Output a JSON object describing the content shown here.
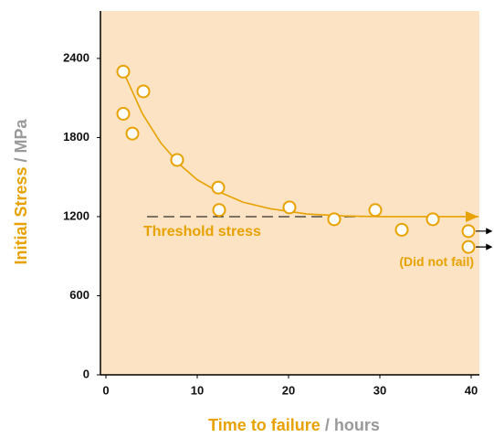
{
  "chart_data": {
    "type": "scatter",
    "x_label": "Time to failure",
    "x_label_unit": "/ hours",
    "y_label": "Initial Stress",
    "y_label_unit": "/ MPa",
    "xlim": [
      -0.6,
      40.9
    ],
    "ylim": [
      0,
      2760
    ],
    "xticks": [
      0,
      10,
      20,
      30,
      40
    ],
    "yticks": [
      0,
      600,
      1200,
      1800,
      2400
    ],
    "color": "#e8a200",
    "background": "#fbe3c3",
    "series": [
      {
        "x": [
          1.9,
          1.9,
          2.9,
          4.1,
          7.8,
          12.3,
          12.4,
          20.1,
          25,
          29.5,
          32.4,
          35.8
        ],
        "values": [
          2300,
          1980,
          1830,
          2150,
          1630,
          1420,
          1250,
          1270,
          1180,
          1250,
          1100,
          1180
        ]
      },
      {
        "name": "(Did not fail)",
        "x": [
          39.7,
          39.7
        ],
        "values": [
          1090,
          970
        ]
      }
    ],
    "curve": {
      "x": [
        1.9,
        4,
        6,
        8,
        10,
        12,
        15,
        18,
        22,
        26,
        30,
        40.8
      ],
      "values": [
        2300,
        1980,
        1760,
        1600,
        1480,
        1400,
        1310,
        1260,
        1220,
        1205,
        1200,
        1200
      ]
    },
    "threshold": {
      "label": "Threshold stress",
      "value": 1200,
      "x": [
        4.5,
        28
      ]
    }
  }
}
